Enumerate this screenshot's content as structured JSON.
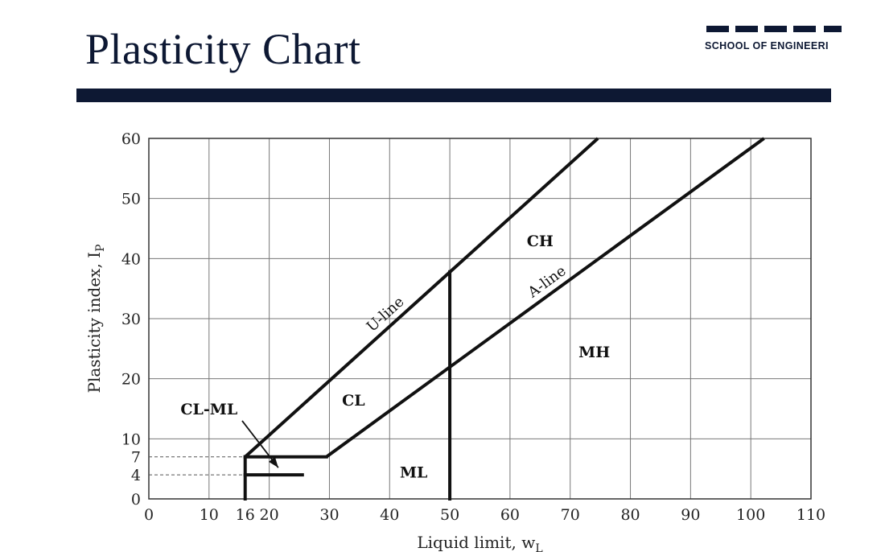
{
  "slide": {
    "title": "Plasticity Chart",
    "logo_text": "SCHOOL OF ENGINEERI"
  },
  "chart_data": {
    "type": "line",
    "xlabel": "Liquid limit, w",
    "xlabel_sub": "L",
    "ylabel": "Plasticity index, I",
    "ylabel_sub": "P",
    "xlim": [
      0,
      110
    ],
    "ylim": [
      0,
      60
    ],
    "x_ticks": [
      0,
      10,
      16,
      20,
      30,
      40,
      50,
      60,
      70,
      80,
      90,
      100,
      110
    ],
    "y_ticks": [
      0,
      4,
      7,
      10,
      20,
      30,
      40,
      50,
      60
    ],
    "grid": true,
    "series": [
      {
        "name": "U-line",
        "x": [
          16,
          74.6
        ],
        "y": [
          7,
          60
        ]
      },
      {
        "name": "A-line",
        "x": [
          29.5,
          102.2
        ],
        "y": [
          7,
          60
        ]
      }
    ],
    "boundaries": [
      {
        "x": [
          16,
          16
        ],
        "y": [
          0,
          7
        ]
      },
      {
        "x": [
          16,
          29.5
        ],
        "y": [
          7,
          7
        ]
      },
      {
        "x": [
          16,
          25.5
        ],
        "y": [
          4,
          4
        ]
      },
      {
        "x": [
          50,
          50
        ],
        "y": [
          0,
          37.8
        ]
      }
    ],
    "dashed_guides": [
      {
        "y": 7,
        "x": [
          0,
          16
        ]
      },
      {
        "y": 4,
        "x": [
          0,
          16
        ]
      }
    ],
    "regions": [
      {
        "label": "CH",
        "x": 65,
        "y": 43
      },
      {
        "label": "CL",
        "x": 34,
        "y": 16.5
      },
      {
        "label": "MH",
        "x": 74,
        "y": 24.5
      },
      {
        "label": "ML",
        "x": 44,
        "y": 4.5
      },
      {
        "label": "CL-ML",
        "x": 10,
        "y": 15
      }
    ],
    "arrow": {
      "from": [
        15.5,
        13
      ],
      "to": [
        21.5,
        5.2
      ]
    }
  }
}
